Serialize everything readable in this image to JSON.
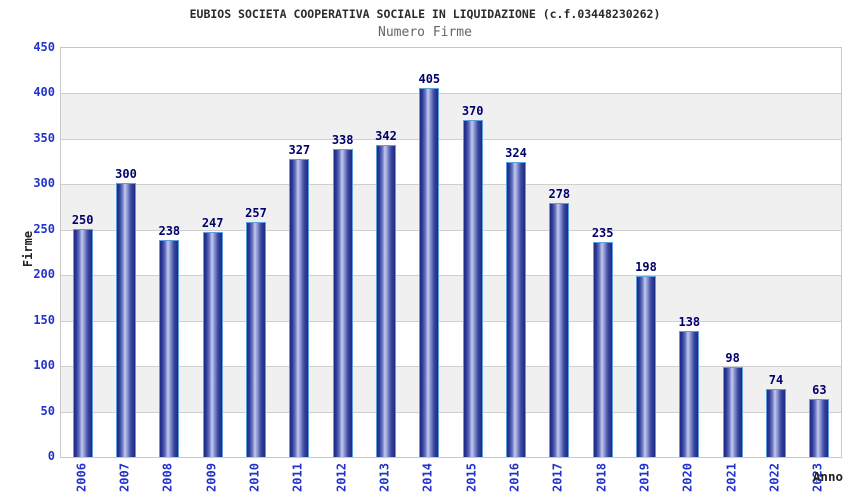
{
  "chart_data": {
    "type": "bar",
    "title": "EUBIOS SOCIETA COOPERATIVA SOCIALE IN LIQUIDAZIONE (c.f.03448230262)",
    "subtitle": "Numero Firme",
    "xlabel": "Anno",
    "ylabel": "Firme",
    "categories": [
      "2006",
      "2007",
      "2008",
      "2009",
      "2010",
      "2011",
      "2012",
      "2013",
      "2014",
      "2015",
      "2016",
      "2017",
      "2018",
      "2019",
      "2020",
      "2021",
      "2022",
      "2023"
    ],
    "values": [
      250,
      300,
      238,
      247,
      257,
      327,
      338,
      342,
      405,
      370,
      324,
      278,
      235,
      198,
      138,
      98,
      74,
      63
    ],
    "ylim": [
      0,
      450
    ],
    "ytick_step": 50,
    "yticks": [
      "0",
      "50",
      "100",
      "150",
      "200",
      "250",
      "300",
      "350",
      "400",
      "450"
    ],
    "grid": "horizontal",
    "legend": "none",
    "colors": {
      "bar_edge": "#5e9fe0",
      "bar_dark": "#1d2a84",
      "bar_light": "#c4caec",
      "value_label": "#00006b",
      "tick_label": "#2233cb",
      "axis_title": "#222222",
      "title": "#2b2b2b",
      "subtitle": "#666666",
      "band_gray": "#f0f0f0",
      "band_white": "#ffffff",
      "gridline": "#cfcfcf",
      "plot_border": "#c8c8c8"
    }
  }
}
